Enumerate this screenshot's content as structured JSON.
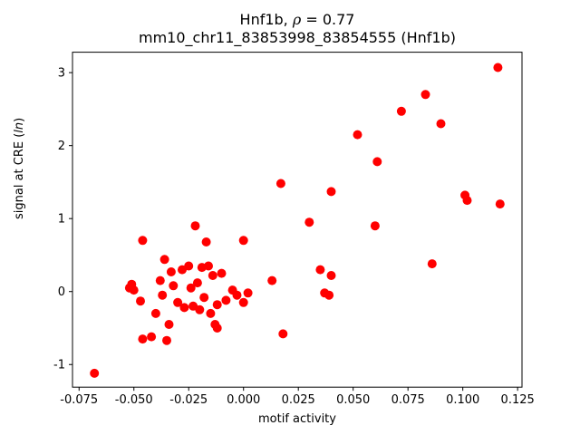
{
  "figure": {
    "title_line1_prefix": "Hnf1b, ",
    "title_line1_rho": "ρ",
    "title_line1_suffix": " = 0.77",
    "title_line2": "mm10_chr11_83853998_83854555 (Hnf1b)",
    "xlabel": "motif activity",
    "ylabel_prefix": "signal at CRE (",
    "ylabel_italic": "ln",
    "ylabel_suffix": ")"
  },
  "chart_data": {
    "type": "scatter",
    "title": "Hnf1b, ρ = 0.77",
    "subtitle": "mm10_chr11_83853998_83854555 (Hnf1b)",
    "xlabel": "motif activity",
    "ylabel": "signal at CRE (ln)",
    "marker_color": "#ff0000",
    "xlim": [
      -0.078,
      0.127
    ],
    "ylim": [
      -1.31,
      3.28
    ],
    "x_ticks": [
      -0.075,
      -0.05,
      -0.025,
      0.0,
      0.025,
      0.05,
      0.075,
      0.1,
      0.125
    ],
    "x_tick_labels": [
      "-0.075",
      "-0.050",
      "-0.025",
      "0.000",
      "0.025",
      "0.050",
      "0.075",
      "0.100",
      "0.125"
    ],
    "y_ticks": [
      -1,
      0,
      1,
      2,
      3
    ],
    "y_tick_labels": [
      "-1",
      "0",
      "1",
      "2",
      "3"
    ],
    "grid": false,
    "legend": "none",
    "points": [
      [
        -0.068,
        -1.12
      ],
      [
        -0.052,
        0.05
      ],
      [
        -0.051,
        0.1
      ],
      [
        -0.05,
        0.02
      ],
      [
        -0.047,
        -0.13
      ],
      [
        -0.046,
        0.7
      ],
      [
        -0.046,
        -0.65
      ],
      [
        -0.042,
        -0.62
      ],
      [
        -0.04,
        -0.3
      ],
      [
        -0.038,
        0.15
      ],
      [
        -0.037,
        -0.05
      ],
      [
        -0.036,
        0.44
      ],
      [
        -0.035,
        -0.67
      ],
      [
        -0.034,
        -0.45
      ],
      [
        -0.033,
        0.27
      ],
      [
        -0.032,
        0.08
      ],
      [
        -0.03,
        -0.15
      ],
      [
        -0.028,
        0.3
      ],
      [
        -0.027,
        -0.22
      ],
      [
        -0.025,
        0.35
      ],
      [
        -0.024,
        0.05
      ],
      [
        -0.023,
        -0.2
      ],
      [
        -0.022,
        0.9
      ],
      [
        -0.021,
        0.12
      ],
      [
        -0.02,
        -0.25
      ],
      [
        -0.019,
        0.33
      ],
      [
        -0.018,
        -0.08
      ],
      [
        -0.017,
        0.68
      ],
      [
        -0.016,
        0.35
      ],
      [
        -0.015,
        -0.3
      ],
      [
        -0.014,
        0.22
      ],
      [
        -0.013,
        -0.45
      ],
      [
        -0.012,
        -0.18
      ],
      [
        -0.012,
        -0.5
      ],
      [
        -0.01,
        0.25
      ],
      [
        -0.008,
        -0.12
      ],
      [
        -0.005,
        0.02
      ],
      [
        -0.003,
        -0.05
      ],
      [
        0.0,
        0.7
      ],
      [
        0.0,
        -0.15
      ],
      [
        0.002,
        -0.02
      ],
      [
        0.013,
        0.15
      ],
      [
        0.017,
        1.48
      ],
      [
        0.018,
        -0.58
      ],
      [
        0.03,
        0.95
      ],
      [
        0.035,
        0.3
      ],
      [
        0.037,
        -0.02
      ],
      [
        0.039,
        -0.05
      ],
      [
        0.04,
        1.37
      ],
      [
        0.04,
        0.22
      ],
      [
        0.052,
        2.15
      ],
      [
        0.06,
        0.9
      ],
      [
        0.061,
        1.78
      ],
      [
        0.072,
        2.47
      ],
      [
        0.083,
        2.7
      ],
      [
        0.086,
        0.38
      ],
      [
        0.09,
        2.3
      ],
      [
        0.101,
        1.32
      ],
      [
        0.102,
        1.25
      ],
      [
        0.116,
        3.07
      ],
      [
        0.117,
        1.2
      ]
    ]
  }
}
